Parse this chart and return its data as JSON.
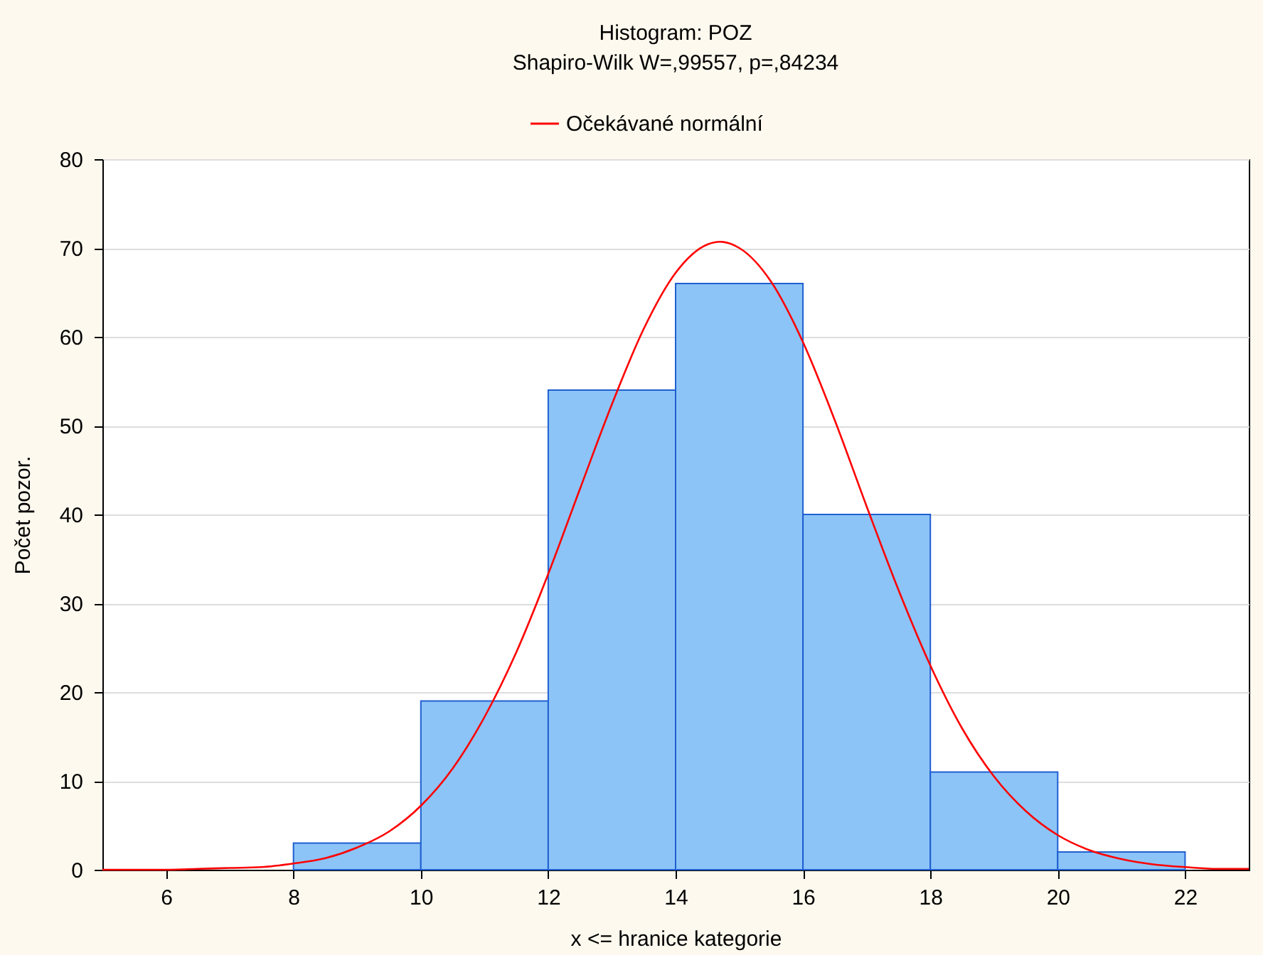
{
  "chart_data": {
    "type": "histogram",
    "title": "Histogram: POZ",
    "subtitle": "Shapiro-Wilk W=,99557, p=,84234",
    "xlabel": "x <= hranice kategorie",
    "ylabel": "Počet pozor.",
    "bins": [
      6,
      8,
      10,
      12,
      14,
      16,
      18,
      20,
      22
    ],
    "values": [
      0,
      3,
      19,
      54,
      66,
      40,
      11,
      2
    ],
    "color": "#8cc4f7",
    "series": [
      {
        "name": "Očekávané normální",
        "type": "line",
        "color": "#ff0000",
        "x": [
          5,
          5.5,
          6,
          6.5,
          7,
          7.5,
          8,
          8.5,
          9,
          9.5,
          10,
          10.5,
          11,
          11.5,
          12,
          12.5,
          13,
          13.5,
          14,
          14.5,
          14.7,
          15,
          15.5,
          16,
          16.5,
          17,
          17.5,
          18,
          18.5,
          19,
          19.5,
          20,
          20.5,
          21,
          21.5,
          22,
          22.5,
          23
        ],
        "values": [
          0,
          0,
          0,
          0.1,
          0.2,
          0.3,
          0.7,
          1.3,
          2.5,
          4.3,
          7.2,
          11.4,
          17.2,
          24.5,
          33.3,
          42.9,
          52.4,
          60.9,
          67.2,
          70.4,
          70.7,
          70,
          66.2,
          59.4,
          50.6,
          40.9,
          31.5,
          23,
          15.9,
          10.5,
          6.6,
          3.9,
          2.2,
          1.2,
          0.6,
          0.3,
          0.1,
          0.1
        ]
      }
    ],
    "xlim": [
      5,
      23
    ],
    "xticks": [
      6,
      8,
      10,
      12,
      14,
      16,
      18,
      20,
      22
    ],
    "ylim": [
      0,
      80
    ],
    "yticks": [
      0,
      10,
      20,
      30,
      40,
      50,
      60,
      70,
      80
    ],
    "grid": "y",
    "legend": "top"
  }
}
